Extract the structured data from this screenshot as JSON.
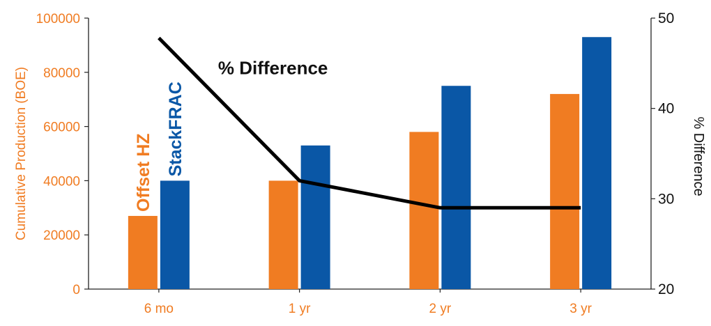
{
  "chart_data": {
    "type": "bar",
    "categories": [
      "6 mo",
      "1 yr",
      "2 yr",
      "3 yr"
    ],
    "series": [
      {
        "name": "Offset HZ",
        "values": [
          27000,
          40000,
          58000,
          72000
        ],
        "color": "#f07c22"
      },
      {
        "name": "StackFRAC",
        "values": [
          40000,
          53000,
          75000,
          93000
        ],
        "color": "#0a57a6"
      }
    ],
    "line_series": {
      "name": "% Difference",
      "values": [
        47.8,
        32,
        29,
        29
      ],
      "color": "#000000",
      "axis": "right"
    },
    "ylabel": "Cumulative Production (BOE)",
    "ylim": [
      0,
      100000
    ],
    "yticks": [
      "0",
      "20000",
      "40000",
      "60000",
      "80000",
      "100000"
    ],
    "y2label": "% Difference",
    "y2lim": [
      20,
      50
    ],
    "y2ticks": [
      "20",
      "30",
      "40",
      "50"
    ],
    "grid": false,
    "legend": "none"
  }
}
